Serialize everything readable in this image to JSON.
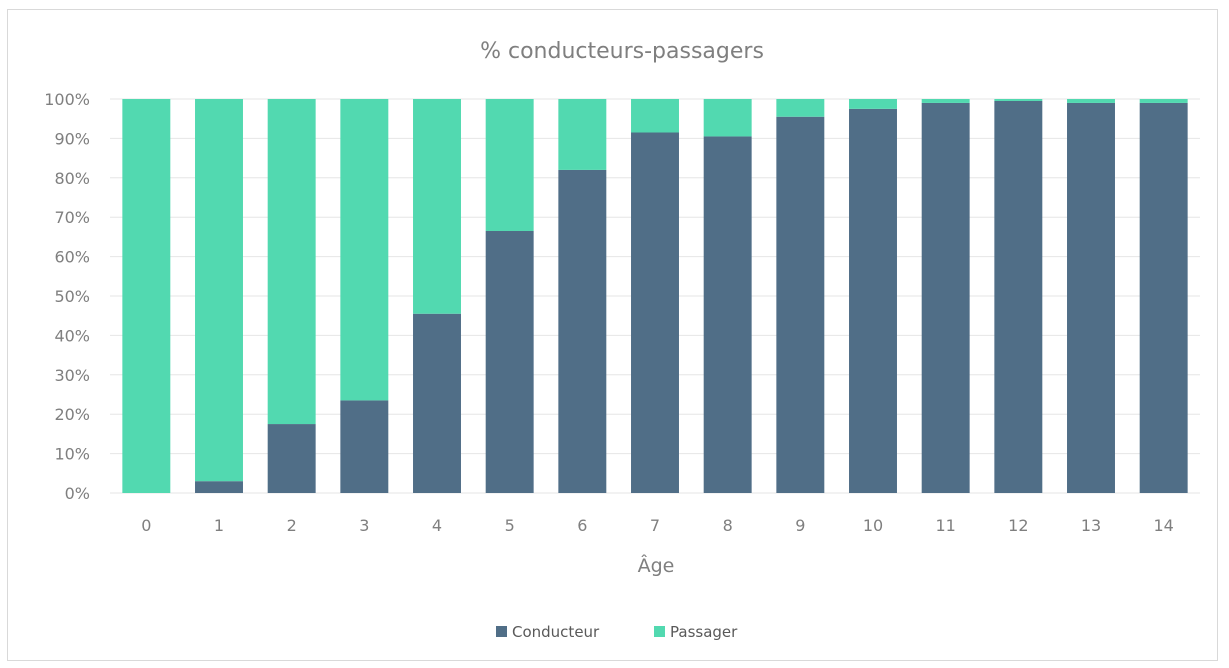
{
  "chart_data": {
    "type": "bar",
    "stacked": true,
    "title": "% conducteurs-passagers",
    "xlabel": "Âge",
    "ylabel": "",
    "categories": [
      "0",
      "1",
      "2",
      "3",
      "4",
      "5",
      "6",
      "7",
      "8",
      "9",
      "10",
      "11",
      "12",
      "13",
      "14"
    ],
    "series": [
      {
        "name": "Conducteur",
        "color": "#506e87",
        "values": [
          0,
          3,
          17.5,
          23.5,
          45.5,
          66.5,
          82,
          91.5,
          90.5,
          95.5,
          97.5,
          99,
          99.5,
          99,
          99
        ]
      },
      {
        "name": "Passager",
        "color": "#52d9b0",
        "values": [
          100,
          97,
          82.5,
          76.5,
          54.5,
          33.5,
          18,
          8.5,
          9.5,
          4.5,
          2.5,
          1,
          0.5,
          1,
          1
        ]
      }
    ],
    "ylim": [
      0,
      100
    ],
    "yticks": [
      "0%",
      "10%",
      "20%",
      "30%",
      "40%",
      "50%",
      "60%",
      "70%",
      "80%",
      "90%",
      "100%"
    ],
    "grid": true,
    "legend": "bottom",
    "gridColor": "#e6e6e6"
  }
}
